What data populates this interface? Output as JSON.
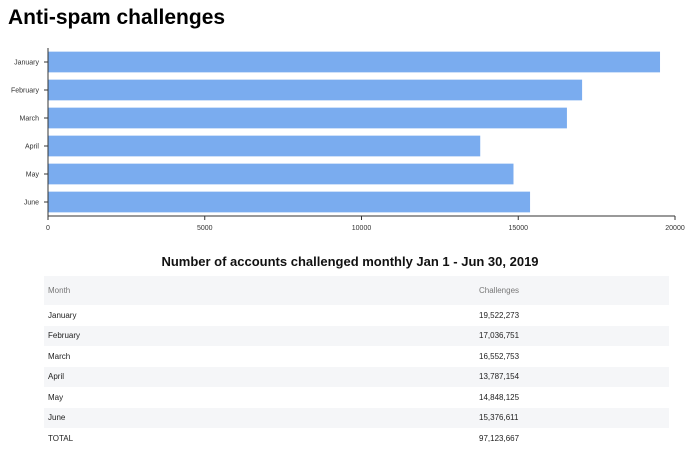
{
  "title": "Anti-spam challenges",
  "chart_data": {
    "type": "bar",
    "orientation": "horizontal",
    "categories": [
      "January",
      "February",
      "March",
      "April",
      "May",
      "June"
    ],
    "values": [
      19522273,
      17036751,
      16552753,
      13787154,
      14848125,
      15376611
    ],
    "scale": 1000,
    "xlim": [
      0,
      20000
    ],
    "xticks": [
      0,
      5000,
      10000,
      15000,
      20000
    ],
    "bar_color": "#7aacef",
    "grid": false,
    "title": "",
    "xlabel": "",
    "ylabel": ""
  },
  "table": {
    "title": "Number of accounts challenged monthly Jan 1 - Jun 30, 2019",
    "headers": [
      "Month",
      "Challenges"
    ],
    "rows": [
      [
        "January",
        "19,522,273"
      ],
      [
        "February",
        "17,036,751"
      ],
      [
        "March",
        "16,552,753"
      ],
      [
        "April",
        "13,787,154"
      ],
      [
        "May",
        "14,848,125"
      ],
      [
        "June",
        "15,376,611"
      ],
      [
        "TOTAL",
        "97,123,667"
      ]
    ]
  }
}
